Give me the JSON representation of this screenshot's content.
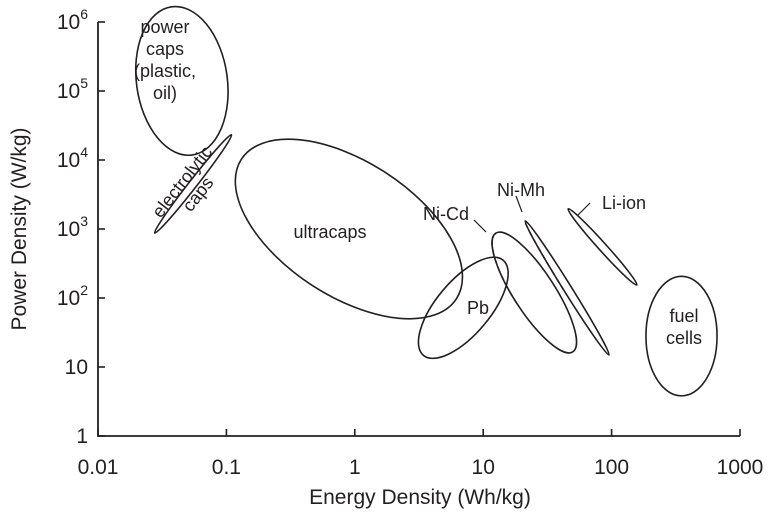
{
  "chart_data": {
    "type": "scatter",
    "title": "",
    "xlabel": "Energy Density (Wh/kg)",
    "ylabel": "Power Density (W/kg)",
    "x_scale": "log",
    "y_scale": "log",
    "xlim": [
      0.01,
      1000
    ],
    "ylim": [
      1,
      1000000
    ],
    "grid": false,
    "x_ticks": [
      {
        "value": 0.01,
        "label": "0.01"
      },
      {
        "value": 0.1,
        "label": "0.1"
      },
      {
        "value": 1,
        "label": "1"
      },
      {
        "value": 10,
        "label": "10"
      },
      {
        "value": 100,
        "label": "100"
      },
      {
        "value": 1000,
        "label": "1000"
      }
    ],
    "y_ticks": [
      {
        "value": 1,
        "base": "1",
        "exp": ""
      },
      {
        "value": 10,
        "base": "10",
        "exp": ""
      },
      {
        "value": 100,
        "base": "10",
        "exp": "2"
      },
      {
        "value": 1000,
        "base": "10",
        "exp": "3"
      },
      {
        "value": 10000,
        "base": "10",
        "exp": "4"
      },
      {
        "value": 100000,
        "base": "10",
        "exp": "5"
      },
      {
        "value": 1000000,
        "base": "10",
        "exp": "6"
      }
    ],
    "regions": [
      {
        "id": "power-caps",
        "lines": [
          "power",
          "caps",
          "(plastic,",
          "oil)"
        ],
        "center": {
          "x": 0.045,
          "y": 140000
        },
        "x_range": [
          0.021,
          0.11
        ],
        "y_range": [
          7000,
          1000000
        ],
        "angle": -8
      },
      {
        "id": "electrolytic-caps",
        "lines": [
          "electrolytic",
          "caps"
        ],
        "center": {
          "x": 0.055,
          "y": 4500
        },
        "x_range": [
          0.028,
          0.1
        ],
        "y_range": [
          700,
          17000
        ],
        "angle": -52
      },
      {
        "id": "ultracaps",
        "lines": [
          "ultracaps"
        ],
        "center": {
          "x": 0.9,
          "y": 1000
        },
        "x_range": [
          0.08,
          4.7
        ],
        "y_range": [
          50,
          20000
        ],
        "angle": 33
      },
      {
        "id": "pb",
        "lines": [
          "Pb"
        ],
        "center": {
          "x": 7,
          "y": 72
        },
        "x_range": [
          3,
          15
        ],
        "y_range": [
          13,
          380
        ],
        "angle": 40
      },
      {
        "id": "ni-cd",
        "lines": [
          "Ni-Cd"
        ],
        "center": {
          "x": 25,
          "y": 120
        },
        "x_range": [
          11,
          50
        ],
        "y_range": [
          16,
          900
        ],
        "angle": 57
      },
      {
        "id": "ni-mh",
        "lines": [
          "Ni-Mh"
        ],
        "center": {
          "x": 45,
          "y": 140
        },
        "x_range": [
          20,
          80
        ],
        "y_range": [
          18,
          1500
        ],
        "angle": 58
      },
      {
        "id": "li-ion",
        "lines": [
          "Li-ion"
        ],
        "center": {
          "x": 85,
          "y": 550
        },
        "x_range": [
          50,
          150
        ],
        "y_range": [
          150,
          1600
        ],
        "angle": 48
      },
      {
        "id": "fuel-cells",
        "lines": [
          "fuel",
          "cells"
        ],
        "center": {
          "x": 350,
          "y": 28
        },
        "x_range": [
          190,
          680
        ],
        "y_range": [
          5,
          270
        ],
        "angle": 0
      }
    ]
  }
}
